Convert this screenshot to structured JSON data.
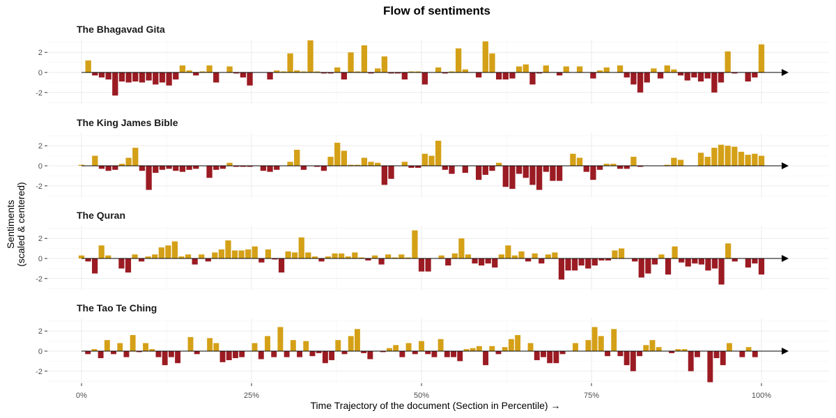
{
  "chart_data": {
    "type": "bar",
    "title": "Flow of sentiments",
    "xlabel": "Time Trajectory of the document (Section in Percentile) →",
    "ylabel_lines": [
      "Sentiments",
      "(scaled & centered)"
    ],
    "x_ticks": [
      "0%",
      "25%",
      "50%",
      "75%",
      "100%"
    ],
    "y_ticks": [
      "2",
      "0",
      "-2"
    ],
    "xlim": [
      0,
      105
    ],
    "ylim": [
      -3.2,
      3.3
    ],
    "grid": true,
    "colors": {
      "positive": "#D4A017",
      "negative": "#9B1B23",
      "axis": "#000000"
    },
    "series": [
      {
        "name": "The Bhagavad Gita",
        "values": [
          0.0,
          1.2,
          -0.3,
          -0.5,
          -0.7,
          -2.3,
          -0.9,
          -1.0,
          -0.9,
          -1.0,
          -0.8,
          -1.2,
          -1.0,
          -1.3,
          -0.7,
          0.7,
          0.2,
          -0.3,
          0.1,
          0.7,
          -1.0,
          0.0,
          0.6,
          -0.1,
          -0.5,
          -1.3,
          0.0,
          0.0,
          -0.7,
          0.2,
          0.1,
          1.9,
          0.2,
          0.1,
          3.2,
          0.1,
          -0.1,
          -0.1,
          0.5,
          -0.7,
          2.0,
          0.1,
          2.7,
          -0.1,
          0.4,
          1.6,
          -0.1,
          -0.1,
          -0.7,
          0.1,
          0.1,
          -1.2,
          0.0,
          0.5,
          -0.1,
          0.1,
          2.4,
          0.3,
          0.0,
          -0.5,
          3.1,
          1.9,
          -0.7,
          -0.7,
          -0.6,
          0.6,
          0.8,
          -1.2,
          -0.1,
          0.7,
          0.0,
          -0.3,
          0.6,
          0.0,
          0.6,
          0.0,
          -0.6,
          0.2,
          0.5,
          0.0,
          0.7,
          -0.5,
          -1.2,
          -2.0,
          -1.0,
          0.4,
          -0.6,
          0.7,
          0.3,
          -0.3,
          -0.8,
          -0.5,
          -0.9,
          -0.6,
          -2.0,
          -1.0,
          2.1,
          -0.1,
          0.0,
          -0.9,
          -0.5,
          2.8
        ]
      },
      {
        "name": "The King James Bible",
        "values": [
          0.1,
          0.0,
          1.0,
          -0.3,
          -0.5,
          -0.4,
          0.2,
          0.8,
          1.8,
          -0.5,
          -2.4,
          -0.7,
          -0.4,
          -0.3,
          -0.5,
          -0.6,
          -0.4,
          -0.3,
          0.0,
          -1.2,
          -0.4,
          -0.3,
          0.3,
          -0.1,
          -0.1,
          -0.1,
          0.0,
          -0.5,
          -0.6,
          -0.4,
          0.0,
          0.4,
          1.6,
          -0.4,
          0.0,
          -0.1,
          -0.5,
          0.9,
          2.3,
          1.5,
          0.1,
          0.1,
          0.8,
          0.4,
          0.3,
          -1.9,
          -1.3,
          0.0,
          0.4,
          -0.2,
          -0.2,
          1.2,
          1.0,
          2.5,
          -0.4,
          -0.8,
          0.0,
          -0.7,
          0.0,
          -1.4,
          -0.9,
          -0.5,
          0.3,
          -2.1,
          -2.3,
          -0.8,
          -1.2,
          -1.9,
          -2.4,
          -0.6,
          -1.5,
          -1.5,
          0.0,
          1.2,
          0.8,
          -0.6,
          -1.4,
          -0.4,
          0.2,
          0.2,
          -0.3,
          -0.3,
          0.9,
          -0.1,
          0.0,
          0.0,
          0.0,
          0.1,
          0.8,
          0.6,
          0.0,
          0.0,
          1.3,
          0.9,
          1.8,
          2.1,
          2.0,
          1.9,
          1.4,
          1.1,
          1.2,
          1.0
        ]
      },
      {
        "name": "The Quran",
        "values": [
          0.3,
          -0.3,
          -1.5,
          1.3,
          0.3,
          0.0,
          -1.0,
          -1.4,
          0.4,
          -0.3,
          0.2,
          0.4,
          1.1,
          1.3,
          1.7,
          0.2,
          0.4,
          -0.6,
          0.4,
          -0.3,
          0.6,
          0.9,
          1.8,
          0.8,
          0.8,
          0.9,
          1.2,
          -0.4,
          0.9,
          -0.1,
          -1.4,
          0.7,
          0.6,
          2.1,
          0.6,
          0.2,
          -0.3,
          0.2,
          0.5,
          0.5,
          0.2,
          0.6,
          0.1,
          -0.2,
          0.3,
          -0.6,
          0.4,
          0.1,
          0.4,
          0.1,
          2.8,
          -1.3,
          -1.3,
          0.0,
          0.3,
          -0.7,
          0.5,
          2.0,
          0.4,
          -0.5,
          -0.7,
          -0.5,
          -0.9,
          0.4,
          1.3,
          0.3,
          0.7,
          -0.3,
          0.5,
          -0.5,
          0.4,
          0.6,
          -2.1,
          -1.2,
          -1.2,
          -0.7,
          -1.0,
          -0.7,
          -0.2,
          -0.2,
          0.8,
          1.0,
          0.0,
          -0.3,
          -1.9,
          -1.5,
          -0.6,
          0.4,
          -1.6,
          1.2,
          -0.4,
          -0.8,
          -0.5,
          -0.6,
          -1.2,
          -1.0,
          -2.6,
          1.5,
          -0.3,
          0.0,
          -0.9,
          -0.5,
          -1.6
        ]
      },
      {
        "name": "The Tao Te Ching",
        "values": [
          0.0,
          -0.3,
          0.2,
          -0.7,
          1.1,
          -0.3,
          0.8,
          -0.6,
          1.6,
          -0.1,
          0.8,
          0.2,
          -0.6,
          -1.4,
          -0.6,
          -1.2,
          0.0,
          1.4,
          -0.3,
          0.0,
          1.3,
          0.8,
          -1.1,
          -0.9,
          -0.7,
          -0.6,
          0.0,
          0.8,
          -0.8,
          1.5,
          -0.6,
          2.4,
          -0.6,
          1.1,
          -0.6,
          1.0,
          -0.5,
          -0.2,
          -1.2,
          -0.9,
          1.1,
          -0.3,
          1.5,
          2.2,
          -0.2,
          -0.8,
          0.0,
          -0.1,
          0.3,
          0.6,
          -0.6,
          0.8,
          -0.3,
          1.0,
          -0.3,
          -0.6,
          1.2,
          -0.6,
          -0.6,
          -1.0,
          0.2,
          0.3,
          0.5,
          -1.4,
          0.5,
          -0.3,
          0.4,
          1.2,
          1.6,
          0.0,
          0.8,
          -0.9,
          -0.6,
          -1.2,
          -1.2,
          -0.3,
          0.0,
          0.8,
          0.0,
          1.1,
          2.4,
          1.5,
          -0.5,
          2.2,
          -0.5,
          -1.4,
          -2.0,
          -0.5,
          0.6,
          1.1,
          0.4,
          0.0,
          -0.2,
          0.2,
          0.2,
          -2.0,
          -0.6,
          0.0,
          -3.1,
          -0.7,
          -1.4,
          0.8,
          0.0,
          -0.6,
          0.4,
          -0.6,
          0.0
        ]
      }
    ]
  }
}
